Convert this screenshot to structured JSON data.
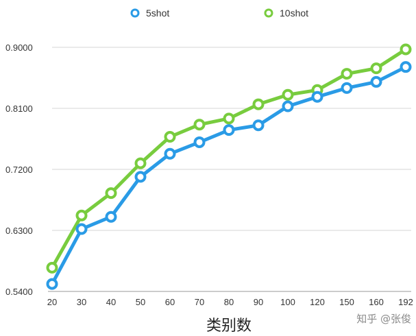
{
  "chart_data": {
    "type": "line",
    "categories": [
      "20",
      "30",
      "40",
      "50",
      "60",
      "70",
      "80",
      "90",
      "100",
      "120",
      "150",
      "160",
      "192"
    ],
    "series": [
      {
        "name": "5shot",
        "color": "#2a9be6",
        "values": [
          0.551,
          0.632,
          0.65,
          0.709,
          0.743,
          0.76,
          0.778,
          0.785,
          0.813,
          0.827,
          0.84,
          0.849,
          0.871
        ]
      },
      {
        "name": "10shot",
        "color": "#78cc3e",
        "values": [
          0.575,
          0.652,
          0.685,
          0.729,
          0.768,
          0.786,
          0.795,
          0.816,
          0.83,
          0.837,
          0.861,
          0.869,
          0.897
        ]
      }
    ],
    "yticks": [
      "0.5400",
      "0.6300",
      "0.7200",
      "0.8100",
      "0.9000"
    ],
    "ylim": [
      0.54,
      0.9
    ],
    "xlabel": "类别数",
    "ylabel": "",
    "title": "",
    "grid": true,
    "legend_position": "top-center"
  },
  "watermark": "知乎 @张俊"
}
